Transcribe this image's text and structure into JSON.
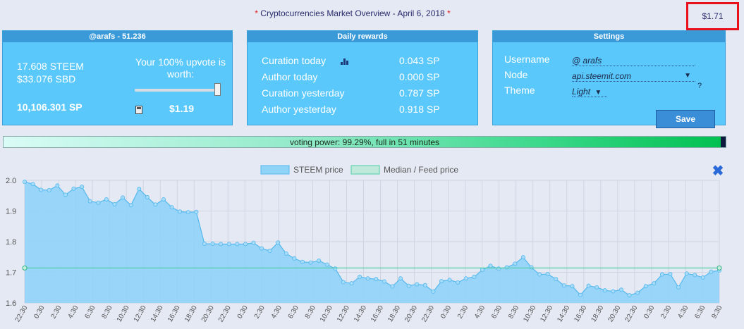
{
  "header": {
    "star_left": "*",
    "title": "Cryptocurrencies Market Overview - April 6, 2018",
    "star_right": "*",
    "price": "$1.71"
  },
  "account": {
    "title": "@arafs - 51.236",
    "steem": "17.608 STEEM",
    "sbd": "$33.076 SBD",
    "sp": "10,106.301 SP",
    "upvote_label": "Your 100% upvote is worth:",
    "upvote_value": "$1.19",
    "slider_percent": 100
  },
  "rewards": {
    "title": "Daily rewards",
    "rows": [
      {
        "label": "Curation today",
        "value": "0.043 SP"
      },
      {
        "label": "Author today",
        "value": "0.000 SP"
      },
      {
        "label": "Curation yesterday",
        "value": "0.787 SP"
      },
      {
        "label": "Author yesterday",
        "value": "0.918 SP"
      }
    ]
  },
  "settings": {
    "title": "Settings",
    "username_label": "Username",
    "username_value": "@ arafs",
    "node_label": "Node",
    "node_value": "api.steemit.com",
    "node_arrow": "▼",
    "node_help": "?",
    "theme_label": "Theme",
    "theme_value": "Light",
    "theme_arrow": "▼",
    "save_label": "Save"
  },
  "voting_power": {
    "text": "voting power: 99.29%, full in 51 minutes",
    "percent": 99.29
  },
  "colors": {
    "steem_fill": "#8fd3f8",
    "steem_line": "#55b8ee",
    "median_line": "#4fcfa6",
    "close": "#2a6ad8"
  },
  "chart_data": {
    "type": "area",
    "legend": [
      "STEEM price",
      "Median / Feed price"
    ],
    "legend_position": "top-center",
    "ylim": [
      1.6,
      2.0
    ],
    "yticks": [
      "2.0",
      "1.9",
      "1.8",
      "1.7",
      "1.6"
    ],
    "xticks": [
      "22:30",
      "0:30",
      "2:30",
      "4:30",
      "6:30",
      "8:30",
      "10:30",
      "12:30",
      "14:30",
      "16:30",
      "18:30",
      "20:30",
      "22:30",
      "0:30",
      "2:30",
      "4:30",
      "6:30",
      "8:30",
      "10:30",
      "12:30",
      "14:30",
      "16:30",
      "18:30",
      "20:30",
      "22:30",
      "0:30",
      "2:30",
      "4:30",
      "6:30",
      "8:30",
      "10:30",
      "12:30",
      "14:30",
      "16:30",
      "18:30",
      "20:30",
      "22:30",
      "0:30",
      "2:30",
      "4:30",
      "6:30",
      "9:30"
    ],
    "series": [
      {
        "name": "STEEM price",
        "values": [
          1.995,
          1.988,
          1.969,
          1.968,
          1.983,
          1.953,
          1.973,
          1.979,
          1.932,
          1.927,
          1.938,
          1.922,
          1.944,
          1.919,
          1.972,
          1.945,
          1.921,
          1.938,
          1.912,
          1.898,
          1.896,
          1.897,
          1.793,
          1.793,
          1.792,
          1.792,
          1.792,
          1.792,
          1.796,
          1.778,
          1.77,
          1.797,
          1.761,
          1.745,
          1.734,
          1.732,
          1.738,
          1.725,
          1.712,
          1.668,
          1.664,
          1.685,
          1.68,
          1.678,
          1.67,
          1.654,
          1.68,
          1.656,
          1.661,
          1.658,
          1.637,
          1.671,
          1.675,
          1.667,
          1.68,
          1.685,
          1.708,
          1.721,
          1.712,
          1.716,
          1.728,
          1.749,
          1.716,
          1.693,
          1.694,
          1.678,
          1.657,
          1.655,
          1.626,
          1.656,
          1.651,
          1.641,
          1.638,
          1.643,
          1.625,
          1.633,
          1.655,
          1.664,
          1.693,
          1.694,
          1.651,
          1.696,
          1.691,
          1.683,
          1.702,
          1.706
        ]
      },
      {
        "name": "Median / Feed price",
        "values": [
          1.714,
          1.714
        ]
      }
    ]
  }
}
